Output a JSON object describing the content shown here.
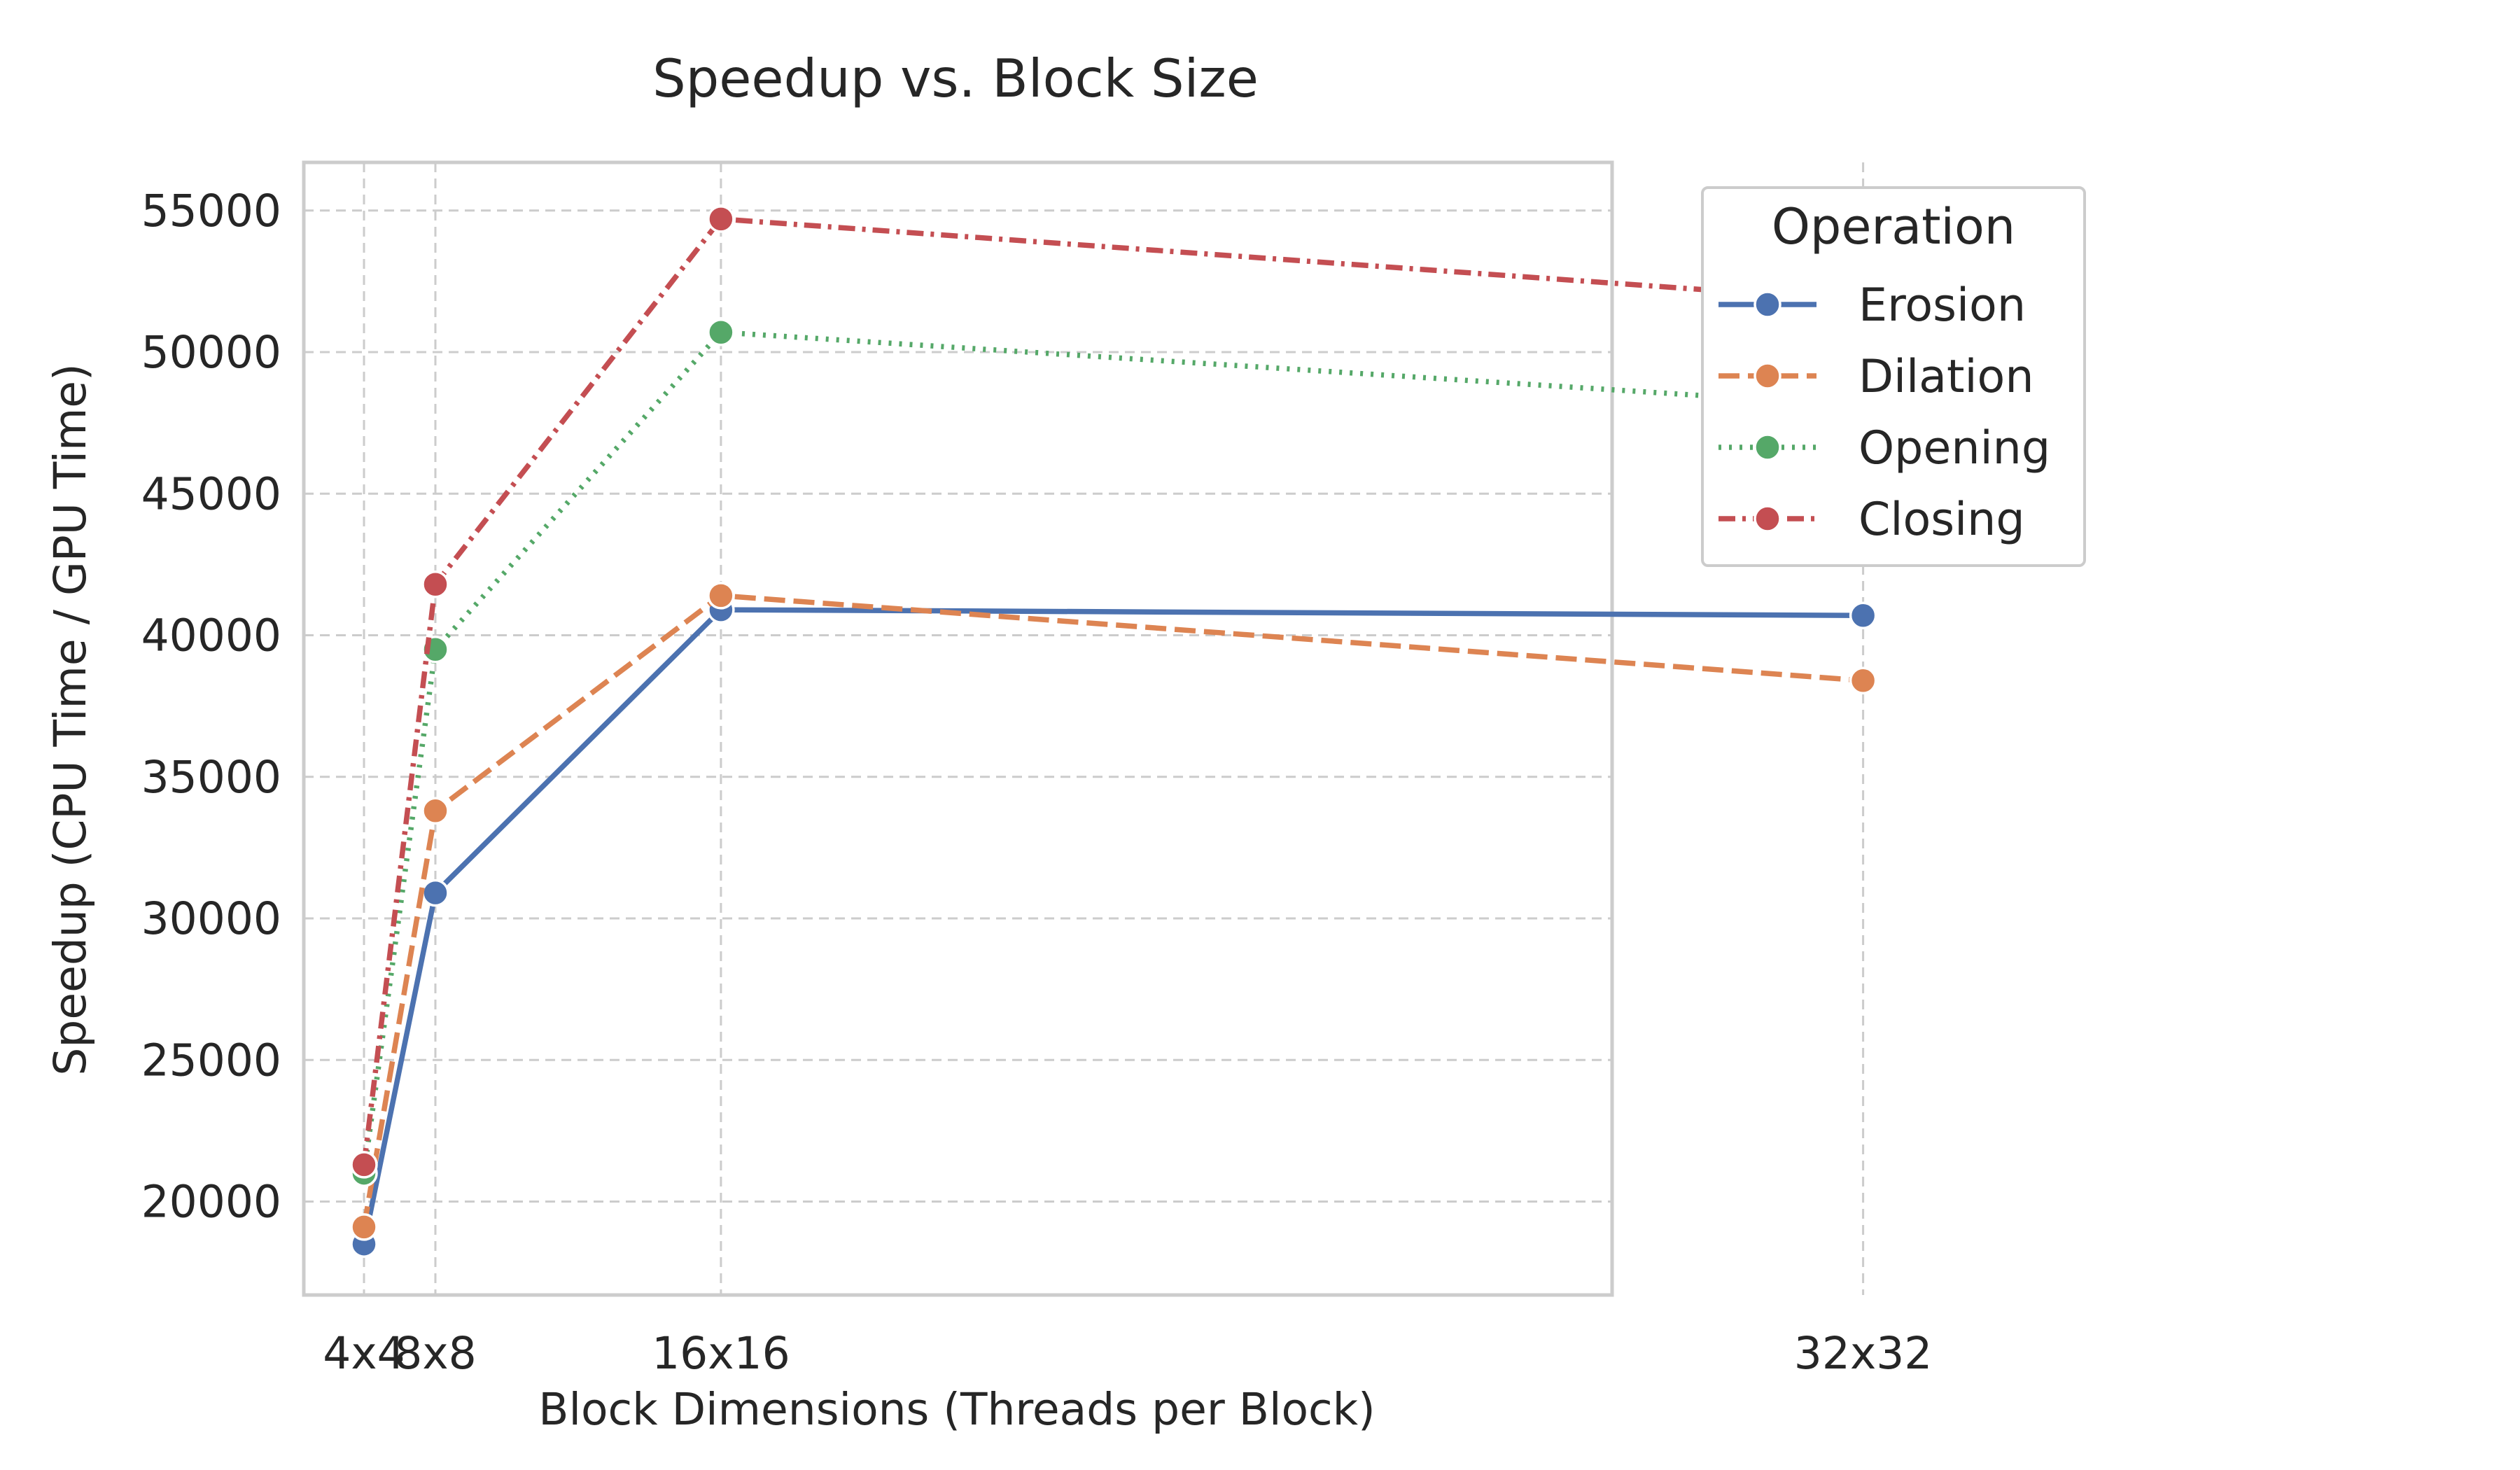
{
  "chart_data": {
    "type": "line",
    "title": "Speedup vs. Block Size",
    "xlabel": "Block Dimensions (Threads per Block)",
    "ylabel": "Speedup (CPU Time / GPU Time)",
    "x_positions": [
      16,
      64,
      256,
      1024
    ],
    "categories": [
      "4x4",
      "8x8",
      "16x16",
      "32x32"
    ],
    "yticks": [
      20000,
      25000,
      30000,
      35000,
      40000,
      45000,
      50000,
      55000
    ],
    "ylim": [
      16700,
      56700
    ],
    "grid": true,
    "legend": {
      "title": "Operation",
      "placement": "outside-upper-right"
    },
    "series": [
      {
        "name": "Erosion",
        "color": "#4c72b0",
        "dash": "solid",
        "values": [
          18500,
          30900,
          40900,
          40700
        ]
      },
      {
        "name": "Dilation",
        "color": "#dd8452",
        "dash": "dashed",
        "values": [
          19100,
          33800,
          41400,
          38400
        ]
      },
      {
        "name": "Opening",
        "color": "#55a868",
        "dash": "dotted",
        "values": [
          21000,
          39500,
          50700,
          48100
        ]
      },
      {
        "name": "Closing",
        "color": "#c44e52",
        "dash": "dashdot",
        "values": [
          21300,
          41800,
          54700,
          51800
        ]
      }
    ]
  }
}
